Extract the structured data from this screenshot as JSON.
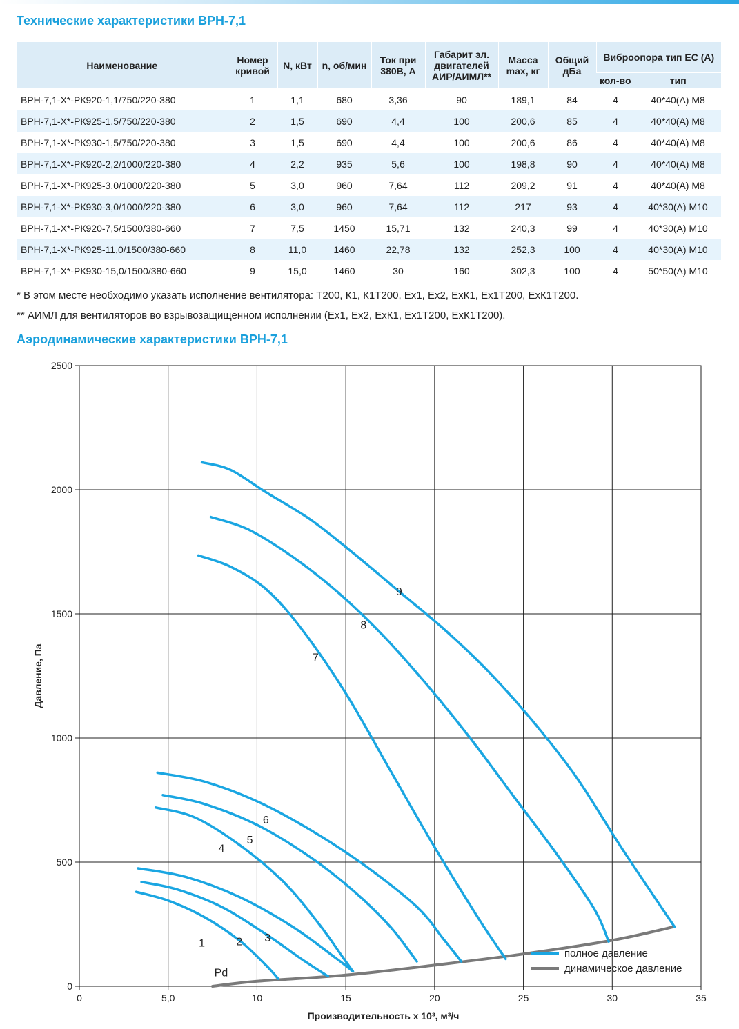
{
  "title_table": "Технические характеристики ВРН-7,1",
  "table": {
    "headers": {
      "name": "Наименование",
      "curve": "Номер кривой",
      "power": "N, кВт",
      "rpm": "n, об/мин",
      "current": "Ток при 380В, А",
      "motor": "Габарит эл. двигателей АИР/АИМЛ**",
      "mass": "Масса max, кг",
      "noise": "Общий дБа",
      "vibro": "Виброопора тип ЕС (А)",
      "vibro_count": "кол-во",
      "vibro_type": "тип"
    },
    "rows": [
      {
        "name": "ВРН-7,1-Х*-РК920-1,1/750/220-380",
        "curve": "1",
        "power": "1,1",
        "rpm": "680",
        "current": "3,36",
        "motor": "90",
        "mass": "189,1",
        "noise": "84",
        "count": "4",
        "type": "40*40(A) M8"
      },
      {
        "name": "ВРН-7,1-Х*-РК925-1,5/750/220-380",
        "curve": "2",
        "power": "1,5",
        "rpm": "690",
        "current": "4,4",
        "motor": "100",
        "mass": "200,6",
        "noise": "85",
        "count": "4",
        "type": "40*40(A) M8"
      },
      {
        "name": "ВРН-7,1-Х*-РК930-1,5/750/220-380",
        "curve": "3",
        "power": "1,5",
        "rpm": "690",
        "current": "4,4",
        "motor": "100",
        "mass": "200,6",
        "noise": "86",
        "count": "4",
        "type": "40*40(A) M8"
      },
      {
        "name": "ВРН-7,1-Х*-РК920-2,2/1000/220-380",
        "curve": "4",
        "power": "2,2",
        "rpm": "935",
        "current": "5,6",
        "motor": "100",
        "mass": "198,8",
        "noise": "90",
        "count": "4",
        "type": "40*40(A) M8"
      },
      {
        "name": "ВРН-7,1-Х*-РК925-3,0/1000/220-380",
        "curve": "5",
        "power": "3,0",
        "rpm": "960",
        "current": "7,64",
        "motor": "112",
        "mass": "209,2",
        "noise": "91",
        "count": "4",
        "type": "40*40(A) M8"
      },
      {
        "name": "ВРН-7,1-Х*-РК930-3,0/1000/220-380",
        "curve": "6",
        "power": "3,0",
        "rpm": "960",
        "current": "7,64",
        "motor": "112",
        "mass": "217",
        "noise": "93",
        "count": "4",
        "type": "40*30(A) M10"
      },
      {
        "name": "ВРН-7,1-Х*-РК920-7,5/1500/380-660",
        "curve": "7",
        "power": "7,5",
        "rpm": "1450",
        "current": "15,71",
        "motor": "132",
        "mass": "240,3",
        "noise": "99",
        "count": "4",
        "type": "40*30(A) M10"
      },
      {
        "name": "ВРН-7,1-Х*-РК925-11,0/1500/380-660",
        "curve": "8",
        "power": "11,0",
        "rpm": "1460",
        "current": "22,78",
        "motor": "132",
        "mass": "252,3",
        "noise": "100",
        "count": "4",
        "type": "40*30(A) M10"
      },
      {
        "name": "ВРН-7,1-Х*-РК930-15,0/1500/380-660",
        "curve": "9",
        "power": "15,0",
        "rpm": "1460",
        "current": "30",
        "motor": "160",
        "mass": "302,3",
        "noise": "100",
        "count": "4",
        "type": "50*50(A) M10"
      }
    ]
  },
  "notes": [
    "* В этом месте необходимо указать исполнение вентилятора: Т200, К1, К1Т200, Ех1, Ех2, ЕхК1, Ех1Т200, ЕхК1Т200.",
    "** АИМЛ для вентиляторов во взрывозащищенном исполнении (Ех1, Ех2, ЕхК1, Ех1Т200, ЕхК1Т200)."
  ],
  "title_chart": "Аэродинамические характеристики ВРН-7,1",
  "colors": {
    "full_pressure": "#1aa6e2",
    "dynamic_pressure": "#7a7a7a",
    "accent": "#1aa0dc"
  },
  "chart_data": {
    "type": "line",
    "xlabel": "Производительность х 10³, м³/ч",
    "ylabel": "Давление, Па",
    "xlim": [
      0,
      35
    ],
    "ylim": [
      0,
      2500
    ],
    "x_ticks": [
      "0",
      "5,0",
      "10",
      "15",
      "20",
      "25",
      "30",
      "35"
    ],
    "x_tick_values": [
      0,
      5,
      10,
      15,
      20,
      25,
      30,
      35
    ],
    "y_ticks": [
      "0",
      "500",
      "1000",
      "1500",
      "2000",
      "2500"
    ],
    "y_tick_values": [
      0,
      500,
      1000,
      1500,
      2000,
      2500
    ],
    "grid": true,
    "legend_position": "bottom-right",
    "legend": [
      "полное давление",
      "динамическое давление"
    ],
    "series": [
      {
        "name": "1",
        "label_at": [
          6.9,
          160
        ],
        "points": [
          [
            3.2,
            380
          ],
          [
            5.0,
            345
          ],
          [
            7.0,
            280
          ],
          [
            9.0,
            185
          ],
          [
            10.5,
            85
          ],
          [
            11.2,
            30
          ]
        ]
      },
      {
        "name": "2",
        "label_at": [
          9.0,
          165
        ],
        "points": [
          [
            3.5,
            420
          ],
          [
            5.5,
            390
          ],
          [
            8.0,
            320
          ],
          [
            10.5,
            210
          ],
          [
            12.5,
            110
          ],
          [
            14.0,
            40
          ]
        ]
      },
      {
        "name": "3",
        "label_at": [
          10.6,
          180
        ],
        "points": [
          [
            3.3,
            475
          ],
          [
            6.0,
            440
          ],
          [
            9.0,
            360
          ],
          [
            12.0,
            240
          ],
          [
            14.5,
            110
          ],
          [
            15.4,
            60
          ]
        ]
      },
      {
        "name": "4",
        "label_at": [
          8.0,
          540
        ],
        "points": [
          [
            4.3,
            720
          ],
          [
            6.5,
            680
          ],
          [
            9.0,
            570
          ],
          [
            11.5,
            420
          ],
          [
            13.5,
            250
          ],
          [
            14.8,
            120
          ],
          [
            15.4,
            60
          ]
        ]
      },
      {
        "name": "5",
        "label_at": [
          9.6,
          575
        ],
        "points": [
          [
            4.7,
            770
          ],
          [
            7.0,
            735
          ],
          [
            10.0,
            650
          ],
          [
            13.0,
            520
          ],
          [
            15.5,
            380
          ],
          [
            17.5,
            240
          ],
          [
            19.0,
            100
          ]
        ]
      },
      {
        "name": "6",
        "label_at": [
          10.5,
          655
        ],
        "points": [
          [
            4.4,
            860
          ],
          [
            7.0,
            825
          ],
          [
            10.0,
            745
          ],
          [
            13.0,
            630
          ],
          [
            16.0,
            490
          ],
          [
            19.0,
            320
          ],
          [
            20.5,
            190
          ],
          [
            21.5,
            100
          ]
        ]
      },
      {
        "name": "7",
        "label_at": [
          13.3,
          1310
        ],
        "points": [
          [
            6.7,
            1735
          ],
          [
            8.5,
            1690
          ],
          [
            10.5,
            1600
          ],
          [
            12.5,
            1440
          ],
          [
            15.0,
            1180
          ],
          [
            17.5,
            870
          ],
          [
            20.0,
            560
          ],
          [
            22.5,
            270
          ],
          [
            24.0,
            110
          ]
        ]
      },
      {
        "name": "8",
        "label_at": [
          16.0,
          1440
        ],
        "points": [
          [
            7.4,
            1890
          ],
          [
            9.5,
            1840
          ],
          [
            12.0,
            1730
          ],
          [
            14.5,
            1590
          ],
          [
            17.0,
            1420
          ],
          [
            19.5,
            1220
          ],
          [
            22.0,
            1000
          ],
          [
            24.5,
            760
          ],
          [
            27.0,
            520
          ],
          [
            29.0,
            310
          ],
          [
            29.8,
            180
          ]
        ]
      },
      {
        "name": "9",
        "label_at": [
          18.0,
          1575
        ],
        "points": [
          [
            6.9,
            2110
          ],
          [
            8.5,
            2080
          ],
          [
            10.5,
            1990
          ],
          [
            13.0,
            1880
          ],
          [
            15.5,
            1740
          ],
          [
            18.0,
            1590
          ],
          [
            20.5,
            1440
          ],
          [
            23.0,
            1270
          ],
          [
            25.5,
            1070
          ],
          [
            28.0,
            840
          ],
          [
            30.5,
            560
          ],
          [
            33.5,
            240
          ]
        ]
      }
    ],
    "dynamic_pressure": {
      "name": "Pd",
      "label_at": [
        7.6,
        40
      ],
      "points": [
        [
          7.5,
          0
        ],
        [
          10,
          20
        ],
        [
          15,
          45
        ],
        [
          20,
          85
        ],
        [
          25,
          130
        ],
        [
          30,
          185
        ],
        [
          33.5,
          240
        ]
      ]
    }
  }
}
